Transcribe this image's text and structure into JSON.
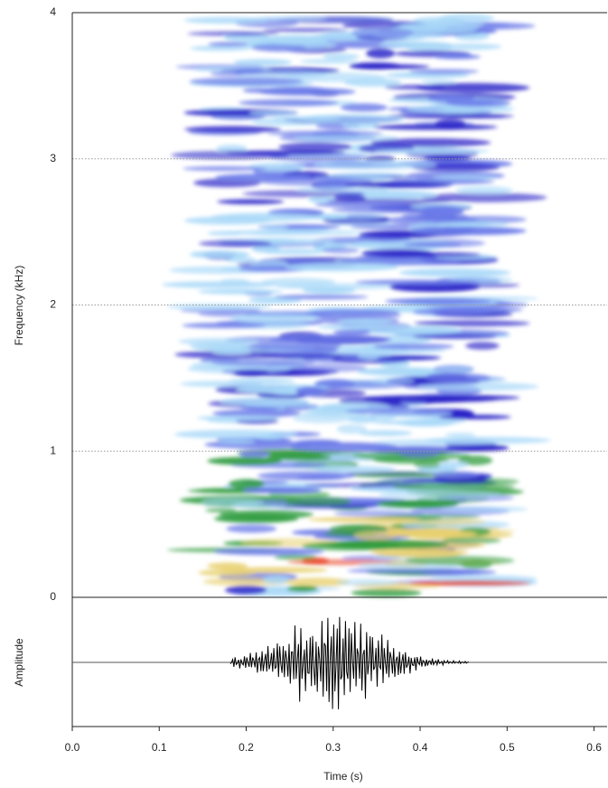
{
  "chart_data": {
    "type": "spectrogram",
    "ylabel": "Frequency (kHz)",
    "xlabel": "Time (s)",
    "waveform_label": "Amplitude",
    "xlim": [
      0,
      0.615
    ],
    "xticks": [
      {
        "value": 0,
        "label": "0.0"
      },
      0.1,
      0.2,
      0.3,
      0.4,
      0.5,
      0.6
    ],
    "ylim": [
      0,
      4
    ],
    "yticks": [
      0,
      1,
      2,
      3,
      4
    ],
    "grid": true
  }
}
